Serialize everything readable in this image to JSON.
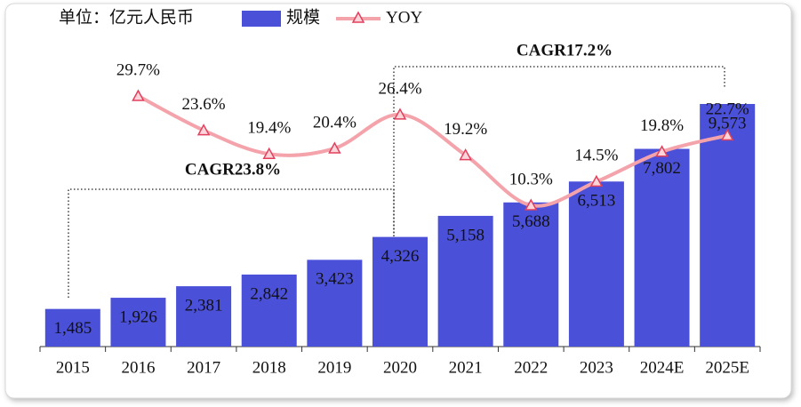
{
  "chart_data": {
    "type": "bar",
    "unit_note": "单位：亿元人民币",
    "categories": [
      "2015",
      "2016",
      "2017",
      "2018",
      "2019",
      "2020",
      "2021",
      "2022",
      "2023",
      "2024E",
      "2025E"
    ],
    "series": [
      {
        "name": "规模",
        "type": "bar",
        "color": "#4b50d8",
        "values": [
          1485,
          1926,
          2381,
          2842,
          3423,
          4326,
          5158,
          5688,
          6513,
          7802,
          9573
        ],
        "value_labels": [
          "1,485",
          "1,926",
          "2,381",
          "2,842",
          "3,423",
          "4,326",
          "5,158",
          "5,688",
          "6,513",
          "7,802",
          "9,573"
        ]
      },
      {
        "name": "YOY",
        "type": "line",
        "axis": "y2",
        "color": "#f4a3ab",
        "marker_color": "#e2405c",
        "values": [
          null,
          29.7,
          23.6,
          19.4,
          20.4,
          26.4,
          19.2,
          10.3,
          14.5,
          19.8,
          22.7
        ],
        "value_labels": [
          null,
          "29.7%",
          "23.6%",
          "19.4%",
          "20.4%",
          "26.4%",
          "19.2%",
          "10.3%",
          "14.5%",
          "19.8%",
          "22.7%"
        ]
      }
    ],
    "annotations": [
      "CAGR23.8%",
      "CAGR17.2%"
    ]
  }
}
